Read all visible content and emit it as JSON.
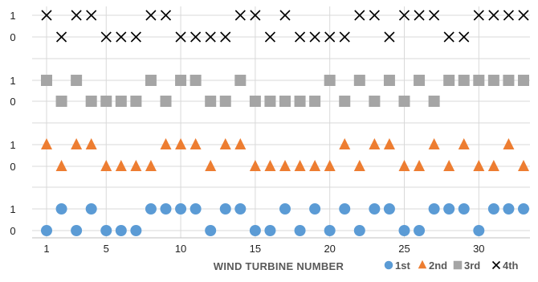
{
  "chart_data": {
    "type": "scatter",
    "title": "",
    "xlabel": "WIND TURBINE NUMBER",
    "ylabel": "",
    "x": [
      1,
      2,
      3,
      4,
      5,
      6,
      7,
      8,
      9,
      10,
      11,
      12,
      13,
      14,
      15,
      16,
      17,
      18,
      19,
      20,
      21,
      22,
      23,
      24,
      25,
      26,
      27,
      28,
      29,
      30,
      31,
      32,
      33
    ],
    "xlim": [
      0.5,
      33.5
    ],
    "xticks": [
      1,
      5,
      10,
      15,
      20,
      25,
      30
    ],
    "ytick_labels": [
      "0",
      "1"
    ],
    "grid": true,
    "legend_position": "bottom-right",
    "series": [
      {
        "name": "1st",
        "marker": "circle",
        "color": "#5b9bd5",
        "values": [
          0,
          1,
          0,
          1,
          0,
          0,
          0,
          1,
          1,
          1,
          1,
          0,
          1,
          1,
          0,
          0,
          1,
          0,
          1,
          0,
          1,
          0,
          1,
          1,
          0,
          0,
          1,
          1,
          1,
          0,
          1,
          1,
          1
        ]
      },
      {
        "name": "2nd",
        "marker": "triangle",
        "color": "#ed7d31",
        "values": [
          1,
          0,
          1,
          1,
          0,
          0,
          0,
          0,
          1,
          1,
          1,
          0,
          1,
          1,
          0,
          0,
          0,
          0,
          0,
          0,
          1,
          0,
          1,
          1,
          0,
          0,
          1,
          0,
          1,
          0,
          0,
          1,
          0
        ]
      },
      {
        "name": "3rd",
        "marker": "square",
        "color": "#a5a5a5",
        "values": [
          1,
          0,
          1,
          0,
          0,
          0,
          0,
          1,
          0,
          1,
          1,
          0,
          0,
          1,
          0,
          0,
          0,
          0,
          0,
          1,
          0,
          1,
          0,
          1,
          0,
          1,
          0,
          1,
          1,
          1,
          1,
          1,
          1
        ]
      },
      {
        "name": "4th",
        "marker": "cross",
        "color": "#000000",
        "values": [
          1,
          0,
          1,
          1,
          0,
          0,
          0,
          1,
          1,
          0,
          0,
          0,
          0,
          1,
          1,
          0,
          1,
          0,
          0,
          0,
          0,
          1,
          1,
          0,
          1,
          1,
          1,
          0,
          0,
          1,
          1,
          1,
          1
        ]
      }
    ]
  }
}
